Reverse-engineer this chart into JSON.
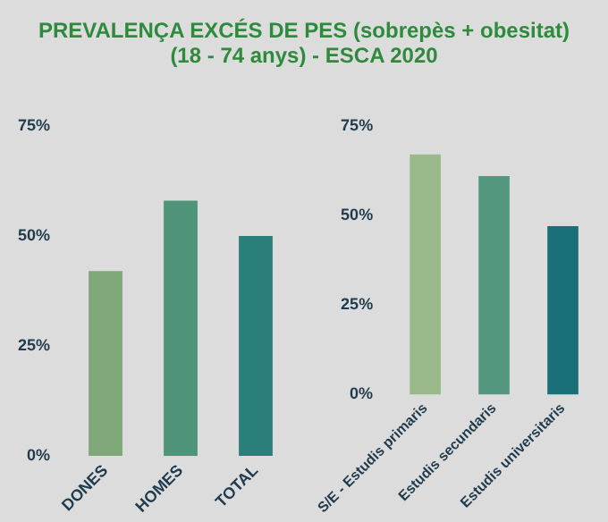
{
  "chart_data": [
    {
      "type": "bar",
      "title": "PREVALENÇA EXCÉS DE PES (sobrepès + obesitat)",
      "subtitle": "(18 - 74 anys) - ESCA 2020",
      "categories": [
        "DONES",
        "HOMES",
        "TOTAL"
      ],
      "values": [
        42,
        58,
        50
      ],
      "colors": [
        "#7fa878",
        "#4f9478",
        "#2a7f7a"
      ],
      "ylim": [
        0,
        75
      ],
      "yticks": [
        {
          "value": 0,
          "label": "0%"
        },
        {
          "value": 25,
          "label": "25%"
        },
        {
          "value": 50,
          "label": "50%"
        },
        {
          "value": 75,
          "label": "75%"
        }
      ],
      "grid": false,
      "legend": false
    },
    {
      "type": "bar",
      "categories": [
        "S/E - Estudis primaris",
        "Estudis secundaris",
        "Estudis universitaris"
      ],
      "values": [
        67,
        61,
        47
      ],
      "colors": [
        "#9ab98a",
        "#54977e",
        "#1a7079"
      ],
      "ylim": [
        0,
        75
      ],
      "yticks": [
        {
          "value": 0,
          "label": "0%"
        },
        {
          "value": 25,
          "label": "25%"
        },
        {
          "value": 50,
          "label": "50%"
        },
        {
          "value": 75,
          "label": "75%"
        }
      ],
      "grid": false,
      "legend": false
    }
  ]
}
